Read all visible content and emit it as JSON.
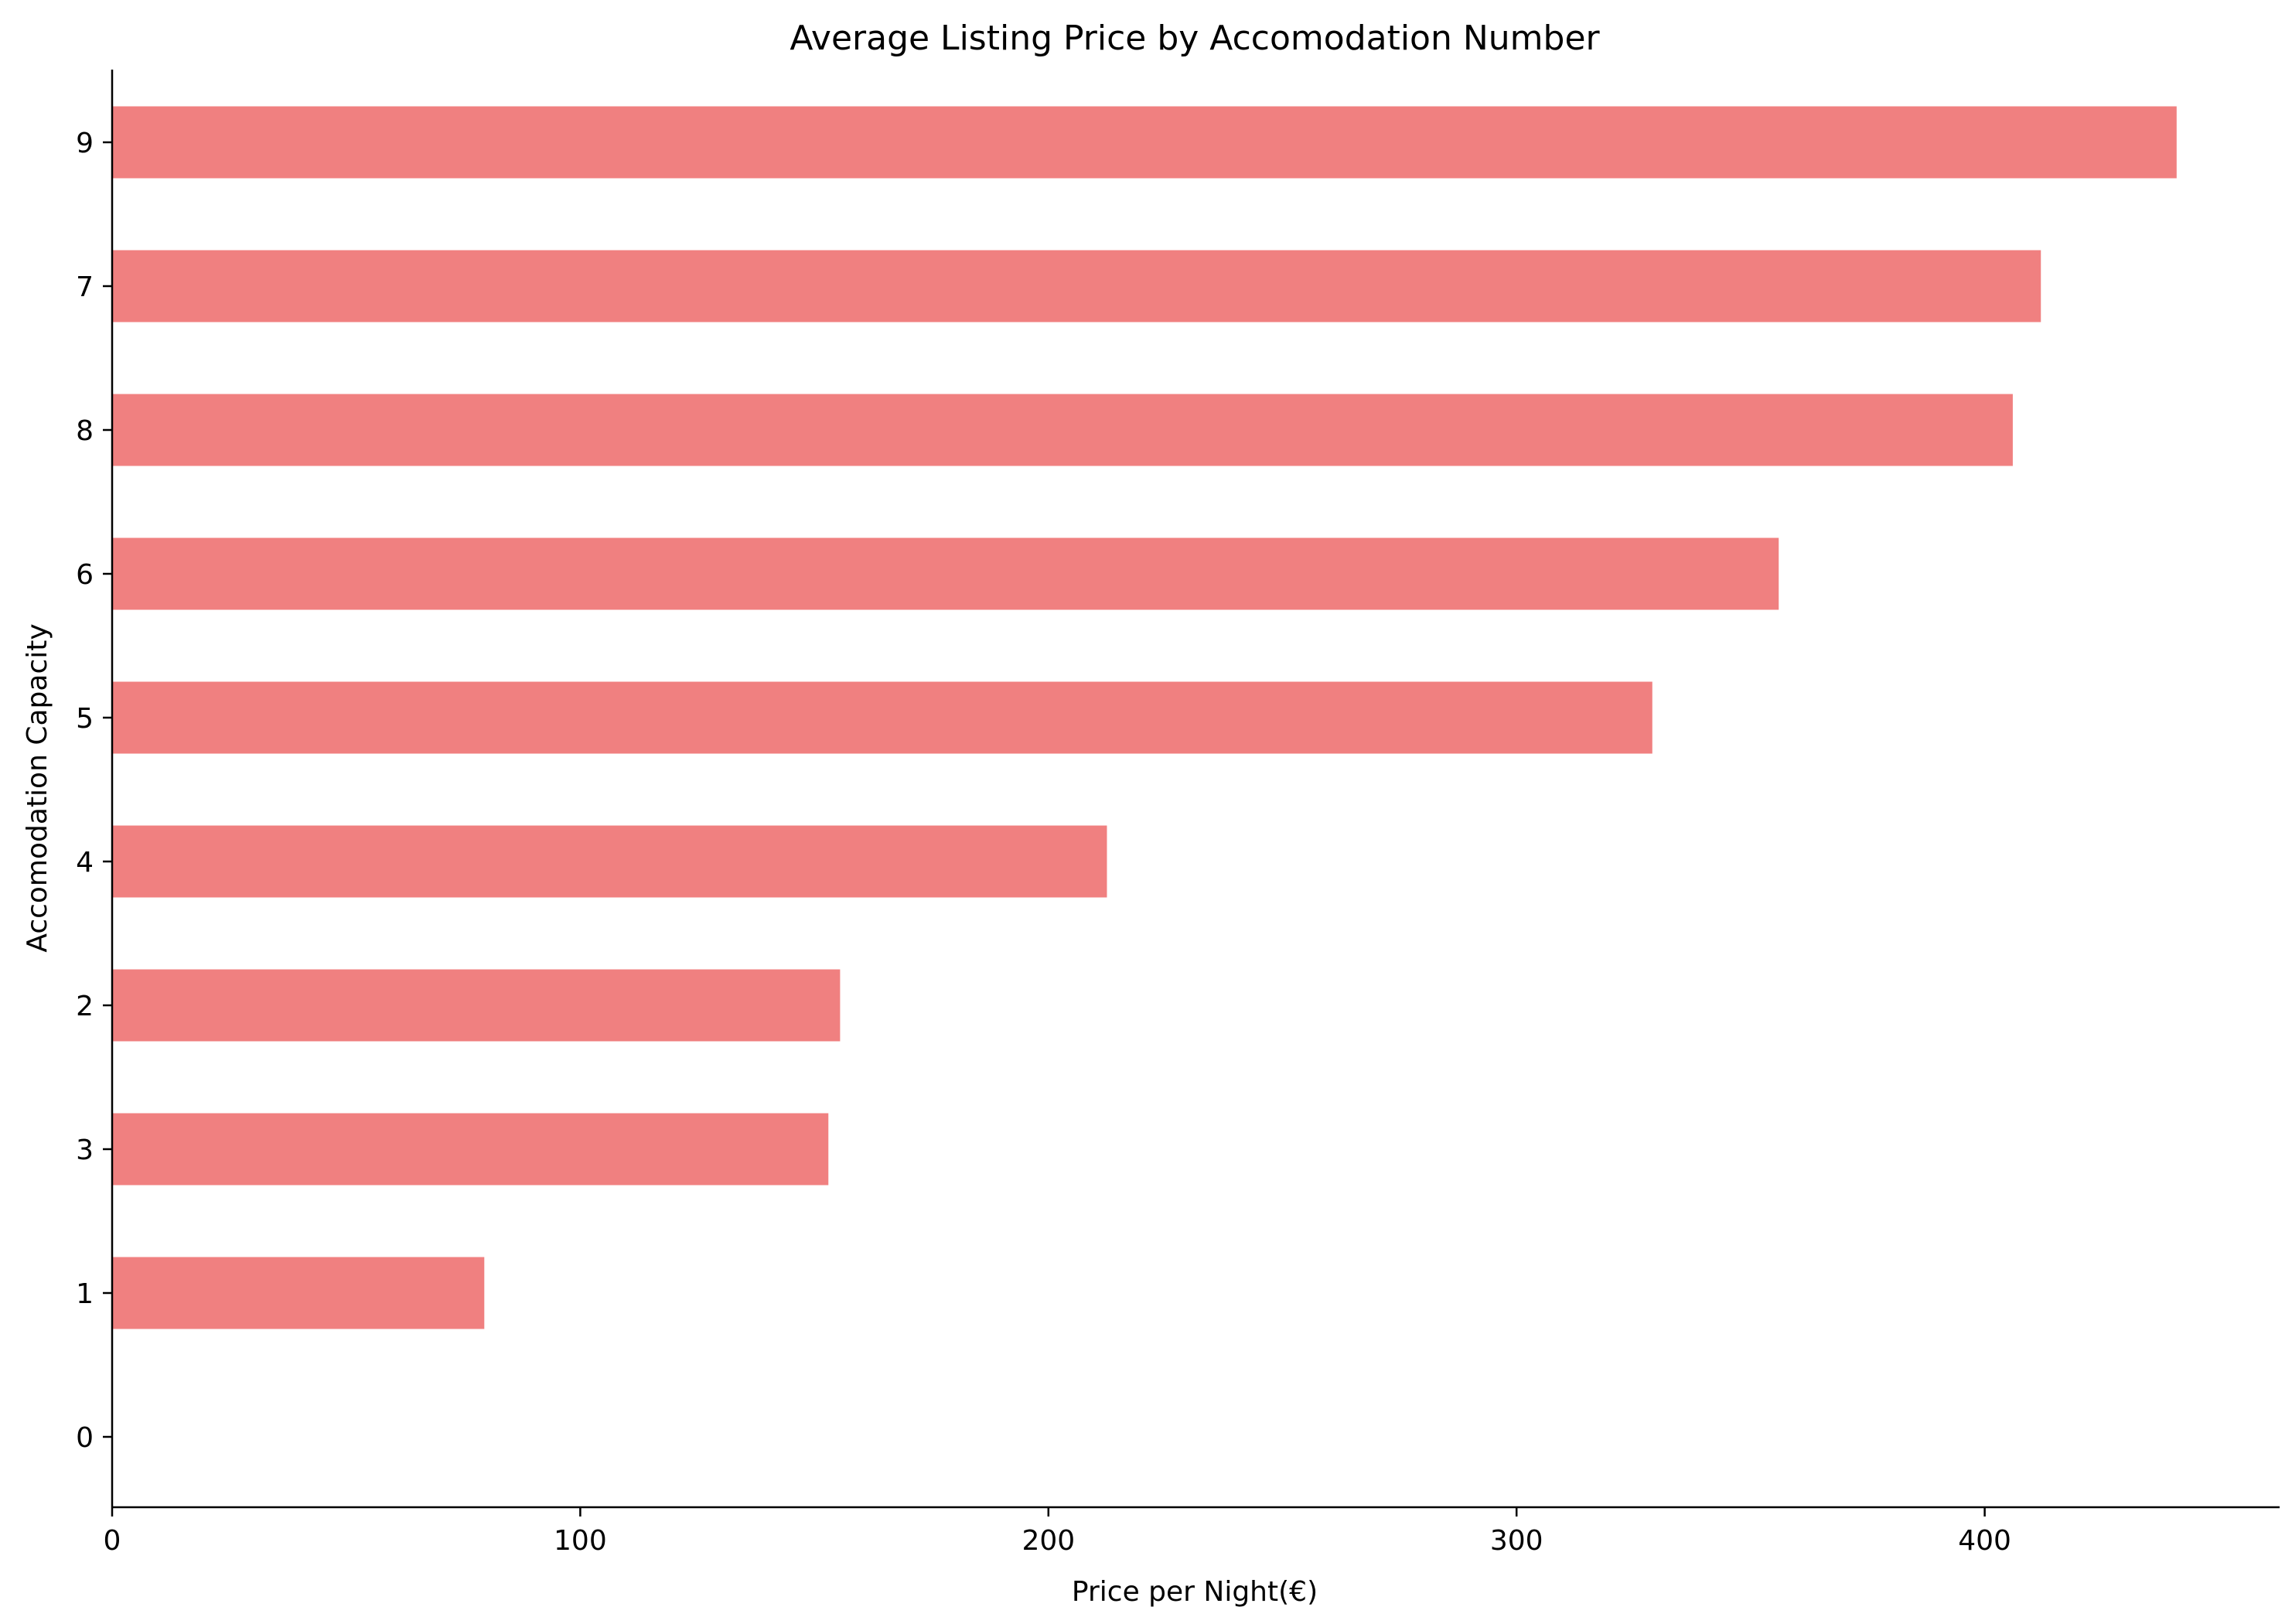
{
  "chart_data": {
    "type": "bar",
    "orientation": "horizontal",
    "title": "Average Listing Price by Accomodation Number",
    "xlabel": "Price per Night(€)",
    "ylabel": "Accomodation Capacity",
    "categories": [
      "0",
      "1",
      "3",
      "2",
      "4",
      "5",
      "6",
      "8",
      "7",
      "9"
    ],
    "values": [
      0,
      79.5,
      153,
      155.5,
      212.5,
      329,
      356,
      406,
      412,
      441
    ],
    "xlim": [
      0,
      463
    ],
    "xticks": [
      0,
      100,
      200,
      300,
      400
    ],
    "grid": false,
    "legend": "none",
    "bar_color": "#f08080"
  }
}
